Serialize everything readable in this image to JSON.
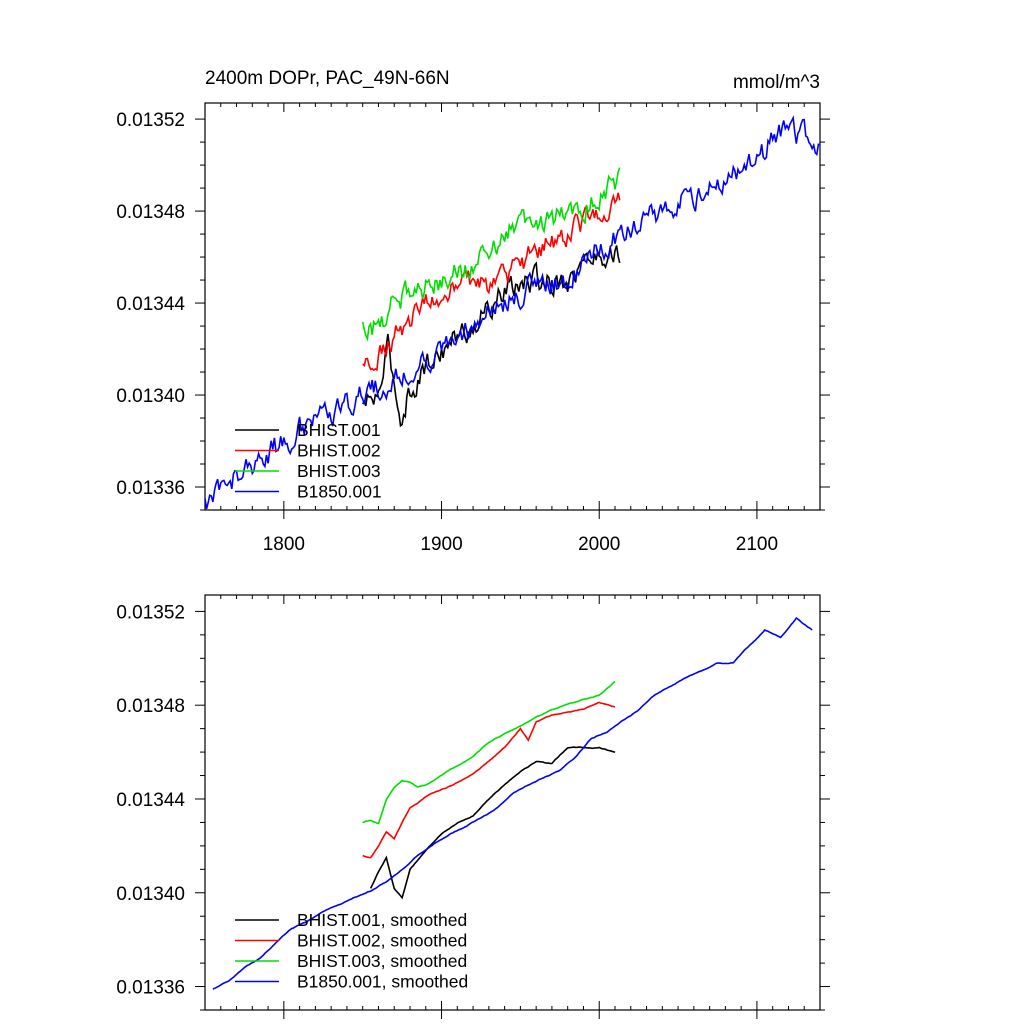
{
  "chart_data": [
    {
      "type": "line",
      "title": "2400m DOPr, PAC_49N-66N",
      "units": "mmol/m^3",
      "xlim": [
        1750,
        2140
      ],
      "ylim": [
        0.01335,
        0.013527
      ],
      "xticks": [
        1800,
        1900,
        2000,
        2100
      ],
      "xtick_labels": [
        "1800",
        "1900",
        "2000",
        "2100"
      ],
      "yticks": [
        0.01336,
        0.0134,
        0.01344,
        0.01348,
        0.01352
      ],
      "ytick_labels": [
        "0.01336",
        "0.01340",
        "0.01344",
        "0.01348",
        "0.01352"
      ],
      "legend": [
        "BHIST.001",
        "BHIST.002",
        "BHIST.003",
        "B1850.001"
      ],
      "legend_position": "bottom-left",
      "noise": 4.5e-06,
      "series": [
        {
          "name": "BHIST.001",
          "color": "#000000",
          "x": [
            1850,
            1860,
            1866,
            1874,
            1880,
            1890,
            1900,
            1920,
            1940,
            1960,
            1980,
            1995,
            2013
          ],
          "y": [
            0.013395,
            0.0134,
            0.01342,
            0.01339,
            0.013402,
            0.013412,
            0.01342,
            0.01343,
            0.013445,
            0.01345,
            0.01345,
            0.01346,
            0.013462
          ]
        },
        {
          "name": "BHIST.002",
          "color": "#ff0000",
          "x": [
            1850,
            1860,
            1875,
            1890,
            1900,
            1920,
            1940,
            1960,
            1980,
            2000,
            2013
          ],
          "y": [
            0.013412,
            0.01342,
            0.01343,
            0.01344,
            0.013443,
            0.013448,
            0.01345,
            0.013463,
            0.01347,
            0.01348,
            0.013482
          ]
        },
        {
          "name": "BHIST.003",
          "color": "#00dd00",
          "x": [
            1850,
            1860,
            1870,
            1880,
            1890,
            1900,
            1920,
            1940,
            1960,
            1980,
            2000,
            2013
          ],
          "y": [
            0.01343,
            0.01343,
            0.01344,
            0.013447,
            0.013447,
            0.01345,
            0.013457,
            0.01347,
            0.013475,
            0.01348,
            0.013484,
            0.013495
          ]
        },
        {
          "name": "B1850.001",
          "color": "#0000ff",
          "x": [
            1750,
            1760,
            1780,
            1800,
            1820,
            1840,
            1860,
            1880,
            1900,
            1920,
            1940,
            1960,
            1980,
            2000,
            2020,
            2040,
            2060,
            2080,
            2100,
            2110,
            2120,
            2130,
            2140
          ],
          "y": [
            0.013353,
            0.01336,
            0.01337,
            0.01338,
            0.01339,
            0.013395,
            0.013403,
            0.01341,
            0.01342,
            0.01343,
            0.01344,
            0.013448,
            0.01345,
            0.013465,
            0.01347,
            0.01348,
            0.013486,
            0.013495,
            0.0135,
            0.013512,
            0.013515,
            0.013512,
            0.01351
          ]
        }
      ]
    },
    {
      "type": "line",
      "title": "",
      "xlim": [
        1750,
        2140
      ],
      "ylim": [
        0.01335,
        0.013527
      ],
      "xticks": [
        1800,
        1900,
        2000,
        2100
      ],
      "xtick_labels": [],
      "yticks": [
        0.01336,
        0.0134,
        0.01344,
        0.01348,
        0.01352
      ],
      "ytick_labels": [
        "0.01336",
        "0.01340",
        "0.01344",
        "0.01348",
        "0.01352"
      ],
      "legend": [
        "BHIST.001, smoothed",
        "BHIST.002, smoothed",
        "BHIST.003, smoothed",
        "B1850.001, smoothed"
      ],
      "legend_position": "bottom-left",
      "noise": 8e-07,
      "series": [
        {
          "name": "BHIST.001, smoothed",
          "color": "#000000",
          "x": [
            1855,
            1860,
            1865,
            1870,
            1875,
            1880,
            1890,
            1900,
            1910,
            1920,
            1930,
            1940,
            1950,
            1960,
            1970,
            1980,
            1990,
            2000,
            2010
          ],
          "y": [
            0.013402,
            0.013409,
            0.013415,
            0.013402,
            0.013398,
            0.01341,
            0.013418,
            0.013425,
            0.01343,
            0.013433,
            0.01344,
            0.013446,
            0.013452,
            0.013456,
            0.013455,
            0.013462,
            0.013462,
            0.013462,
            0.01346
          ]
        },
        {
          "name": "BHIST.002, smoothed",
          "color": "#ff0000",
          "x": [
            1850,
            1855,
            1860,
            1865,
            1870,
            1875,
            1880,
            1890,
            1900,
            1910,
            1920,
            1930,
            1940,
            1950,
            1955,
            1960,
            1970,
            1980,
            1990,
            2000,
            2010
          ],
          "y": [
            0.013416,
            0.013415,
            0.01342,
            0.013426,
            0.013423,
            0.01343,
            0.013436,
            0.013441,
            0.013444,
            0.013447,
            0.013451,
            0.013456,
            0.013462,
            0.01347,
            0.013465,
            0.013473,
            0.013476,
            0.013477,
            0.013478,
            0.013481,
            0.013479
          ]
        },
        {
          "name": "BHIST.003, smoothed",
          "color": "#00dd00",
          "x": [
            1850,
            1855,
            1860,
            1865,
            1870,
            1875,
            1880,
            1885,
            1890,
            1900,
            1910,
            1920,
            1930,
            1940,
            1950,
            1960,
            1970,
            1980,
            1990,
            2000,
            2010
          ],
          "y": [
            0.01343,
            0.013431,
            0.01343,
            0.01344,
            0.013445,
            0.013448,
            0.013447,
            0.013445,
            0.013446,
            0.01345,
            0.013454,
            0.013458,
            0.013464,
            0.013468,
            0.013471,
            0.013475,
            0.013478,
            0.01348,
            0.013482,
            0.013484,
            0.01349
          ]
        },
        {
          "name": "B1850.001, smoothed",
          "color": "#0000ff",
          "x": [
            1755,
            1765,
            1775,
            1785,
            1795,
            1805,
            1815,
            1825,
            1835,
            1845,
            1855,
            1865,
            1875,
            1885,
            1895,
            1905,
            1915,
            1925,
            1935,
            1945,
            1955,
            1965,
            1975,
            1985,
            1995,
            2005,
            2015,
            2025,
            2035,
            2045,
            2055,
            2065,
            2075,
            2085,
            2095,
            2105,
            2115,
            2125,
            2135
          ],
          "y": [
            0.013359,
            0.013362,
            0.013368,
            0.013372,
            0.013379,
            0.013385,
            0.013388,
            0.013392,
            0.013395,
            0.013398,
            0.013401,
            0.013405,
            0.01341,
            0.013416,
            0.013421,
            0.013425,
            0.013428,
            0.013432,
            0.013436,
            0.013442,
            0.013446,
            0.013449,
            0.013452,
            0.013458,
            0.013466,
            0.013469,
            0.013474,
            0.013478,
            0.013484,
            0.013488,
            0.013492,
            0.013495,
            0.013498,
            0.013498,
            0.013505,
            0.013512,
            0.013509,
            0.013517,
            0.013512
          ]
        }
      ]
    }
  ]
}
